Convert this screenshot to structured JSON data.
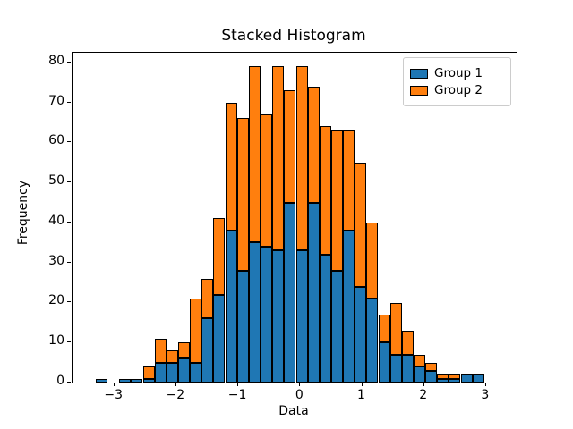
{
  "title": "Stacked Histogram",
  "chart_data": {
    "type": "bar",
    "subtype": "stacked-histogram",
    "title": "Stacked Histogram",
    "xlabel": "Data",
    "ylabel": "Frequency",
    "bin_start": -3.3,
    "bin_width": 0.19,
    "series": [
      {
        "name": "Group 1",
        "color": "#1f77b4",
        "values": [
          1,
          0,
          1,
          1,
          1,
          5,
          5,
          6,
          5,
          16,
          22,
          38,
          28,
          35,
          34,
          33,
          45,
          33,
          45,
          32,
          28,
          38,
          24,
          21,
          10,
          7,
          7,
          4,
          3,
          1,
          1,
          2,
          2
        ]
      },
      {
        "name": "Group 2",
        "color": "#ff7f0e",
        "values": [
          0,
          0,
          0,
          0,
          3,
          6,
          3,
          4,
          16,
          10,
          19,
          32,
          38,
          44,
          33,
          46,
          28,
          46,
          29,
          32,
          35,
          25,
          31,
          19,
          7,
          13,
          6,
          3,
          2,
          1,
          1,
          0,
          0
        ]
      }
    ],
    "totals": [
      1,
      0,
      1,
      1,
      4,
      11,
      8,
      10,
      21,
      26,
      41,
      70,
      66,
      79,
      67,
      79,
      73,
      79,
      74,
      64,
      63,
      63,
      55,
      40,
      17,
      20,
      13,
      7,
      5,
      2,
      2,
      2,
      2
    ],
    "xlim": [
      -3.675,
      3.493
    ],
    "ylim": [
      0,
      82.4
    ],
    "xticks": [
      -3,
      -2,
      -1,
      0,
      1,
      2,
      3
    ],
    "xtick_labels": [
      "−3",
      "−2",
      "−1",
      "0",
      "1",
      "2",
      "3"
    ],
    "yticks": [
      0,
      10,
      20,
      30,
      40,
      50,
      60,
      70,
      80
    ],
    "ytick_labels": [
      "0",
      "10",
      "20",
      "30",
      "40",
      "50",
      "60",
      "70",
      "80"
    ],
    "grid": false,
    "legend": {
      "position": "upper right",
      "entries": [
        "Group 1",
        "Group 2"
      ]
    },
    "colors": {
      "group1": "#1f77b4",
      "group2": "#ff7f0e",
      "edge": "#000000"
    }
  }
}
